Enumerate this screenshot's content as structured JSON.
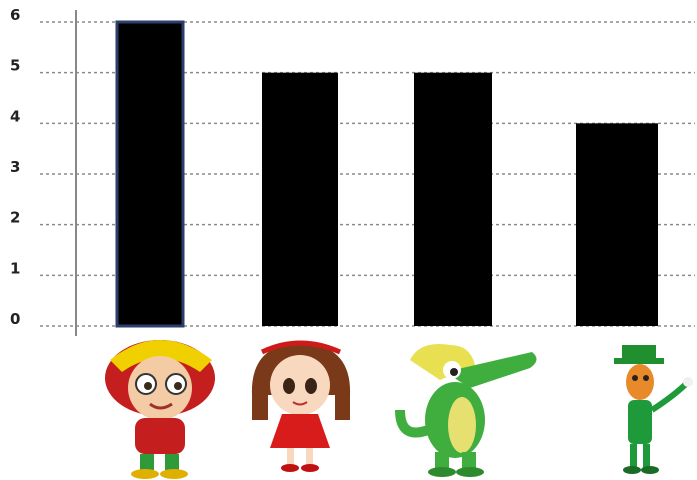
{
  "chart_data": {
    "type": "bar",
    "categories": [
      "girl-with-yellow-hat",
      "girl-in-red-dress",
      "green-alligator",
      "leprechaun-corn"
    ],
    "values": [
      6,
      5,
      5,
      4
    ],
    "y_ticks": [
      "0",
      "1",
      "2",
      "3",
      "4",
      "5",
      "6"
    ],
    "ylim": [
      0,
      6
    ],
    "grid": "dashed-horizontal",
    "bar_color": "#000000",
    "highlight_border_color": "#2c3e6b"
  }
}
